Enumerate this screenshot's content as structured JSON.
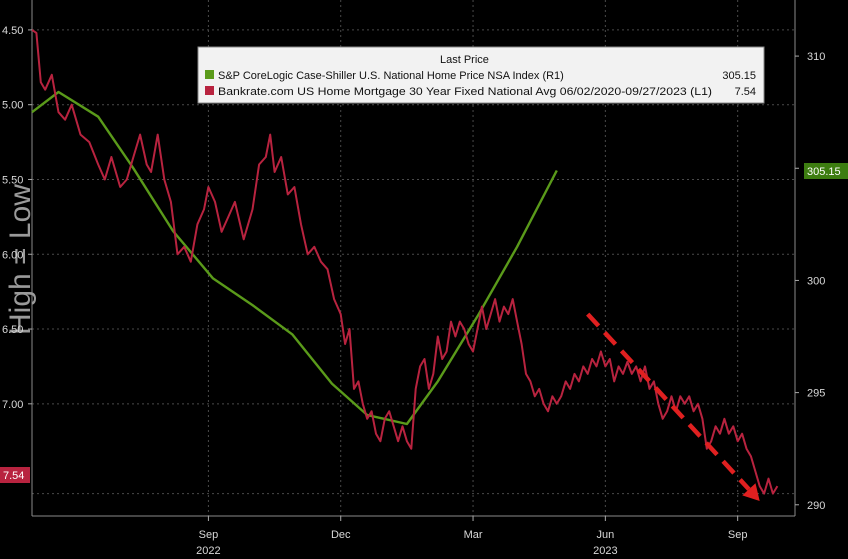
{
  "chart_data": {
    "type": "line",
    "title": "",
    "legend": {
      "header": "Last Price",
      "placement": "top",
      "entries": [
        {
          "label": "S&P CoreLogic Case-Shiller U.S. National Home Price NSA Index  (R1)",
          "value": "305.15",
          "color": "#5a9a1a"
        },
        {
          "label": "Bankrate.com US Home Mortgage 30 Year Fixed National Avg 06/02/2020-09/27/2023  (L1)",
          "value": "7.54",
          "color": "#b8233f"
        }
      ]
    },
    "x_ticks": [
      {
        "label": "Sep",
        "sub": "2022",
        "t": 4.0
      },
      {
        "label": "Dec",
        "sub": "",
        "t": 7.0
      },
      {
        "label": "Mar",
        "sub": "",
        "t": 10.0
      },
      {
        "label": "Jun",
        "sub": "2023",
        "t": 13.0
      },
      {
        "label": "Sep",
        "sub": "",
        "t": 16.0
      }
    ],
    "left_axis": {
      "ylim": [
        7.75,
        4.3
      ],
      "inverted": true,
      "ticks": [
        "4.50",
        "5.00",
        "5.50",
        "6.00",
        "6.50",
        "7.00"
      ],
      "tick_values": [
        4.5,
        5.0,
        5.5,
        6.0,
        6.5,
        7.0
      ]
    },
    "right_axis": {
      "ylim": [
        289.5,
        312.5
      ],
      "ticks": [
        "310",
        "305",
        "300",
        "295",
        "290"
      ],
      "tick_values": [
        310,
        305,
        300,
        295,
        290
      ]
    },
    "grid": true,
    "badges": {
      "left": "7.54",
      "right": "305.15"
    },
    "watermark": "High = Low",
    "series": [
      {
        "name": "S&P CoreLogic Case-Shiller U.S. National Home Price NSA Index",
        "axis": "right",
        "color": "#5a9a1a",
        "points": [
          [
            0.0,
            307.5
          ],
          [
            0.6,
            308.4
          ],
          [
            1.5,
            307.3
          ],
          [
            2.3,
            305.0
          ],
          [
            3.2,
            302.2
          ],
          [
            4.1,
            300.1
          ],
          [
            5.0,
            298.9
          ],
          [
            5.9,
            297.6
          ],
          [
            6.8,
            295.4
          ],
          [
            7.6,
            294.0
          ],
          [
            8.5,
            293.6
          ],
          [
            9.2,
            295.5
          ],
          [
            10.1,
            298.4
          ],
          [
            11.0,
            301.5
          ],
          [
            11.9,
            304.9
          ]
        ]
      },
      {
        "name": "Bankrate.com US Home Mortgage 30 Year Fixed National Avg",
        "axis": "left",
        "color": "#b8233f",
        "points": [
          [
            0.0,
            4.5
          ],
          [
            0.1,
            4.52
          ],
          [
            0.2,
            4.85
          ],
          [
            0.3,
            4.9
          ],
          [
            0.45,
            4.8
          ],
          [
            0.6,
            5.05
          ],
          [
            0.75,
            5.1
          ],
          [
            0.9,
            5.0
          ],
          [
            1.1,
            5.2
          ],
          [
            1.3,
            5.25
          ],
          [
            1.5,
            5.4
          ],
          [
            1.65,
            5.5
          ],
          [
            1.8,
            5.35
          ],
          [
            2.0,
            5.55
          ],
          [
            2.15,
            5.5
          ],
          [
            2.3,
            5.35
          ],
          [
            2.45,
            5.2
          ],
          [
            2.6,
            5.4
          ],
          [
            2.7,
            5.45
          ],
          [
            2.85,
            5.2
          ],
          [
            3.0,
            5.5
          ],
          [
            3.15,
            5.65
          ],
          [
            3.3,
            6.0
          ],
          [
            3.45,
            5.95
          ],
          [
            3.6,
            6.05
          ],
          [
            3.75,
            5.8
          ],
          [
            3.9,
            5.7
          ],
          [
            4.0,
            5.55
          ],
          [
            4.15,
            5.65
          ],
          [
            4.3,
            5.85
          ],
          [
            4.45,
            5.75
          ],
          [
            4.6,
            5.65
          ],
          [
            4.8,
            5.9
          ],
          [
            5.0,
            5.7
          ],
          [
            5.15,
            5.4
          ],
          [
            5.3,
            5.35
          ],
          [
            5.4,
            5.2
          ],
          [
            5.5,
            5.45
          ],
          [
            5.65,
            5.35
          ],
          [
            5.8,
            5.6
          ],
          [
            5.95,
            5.55
          ],
          [
            6.1,
            5.8
          ],
          [
            6.25,
            6.0
          ],
          [
            6.4,
            5.95
          ],
          [
            6.55,
            6.05
          ],
          [
            6.7,
            6.1
          ],
          [
            6.85,
            6.3
          ],
          [
            7.0,
            6.4
          ],
          [
            7.1,
            6.6
          ],
          [
            7.2,
            6.5
          ],
          [
            7.3,
            6.9
          ],
          [
            7.4,
            6.85
          ],
          [
            7.5,
            7.0
          ],
          [
            7.6,
            7.1
          ],
          [
            7.7,
            7.05
          ],
          [
            7.8,
            7.2
          ],
          [
            7.9,
            7.25
          ],
          [
            8.0,
            7.1
          ],
          [
            8.1,
            7.05
          ],
          [
            8.2,
            7.15
          ],
          [
            8.3,
            7.25
          ],
          [
            8.4,
            7.15
          ],
          [
            8.5,
            7.25
          ],
          [
            8.6,
            7.3
          ],
          [
            8.7,
            6.9
          ],
          [
            8.8,
            6.75
          ],
          [
            8.9,
            6.7
          ],
          [
            9.0,
            6.9
          ],
          [
            9.1,
            6.8
          ],
          [
            9.2,
            6.55
          ],
          [
            9.3,
            6.7
          ],
          [
            9.4,
            6.65
          ],
          [
            9.5,
            6.45
          ],
          [
            9.6,
            6.55
          ],
          [
            9.7,
            6.45
          ],
          [
            9.8,
            6.5
          ],
          [
            9.9,
            6.6
          ],
          [
            10.0,
            6.65
          ],
          [
            10.1,
            6.5
          ],
          [
            10.2,
            6.35
          ],
          [
            10.3,
            6.5
          ],
          [
            10.4,
            6.4
          ],
          [
            10.5,
            6.3
          ],
          [
            10.6,
            6.45
          ],
          [
            10.7,
            6.35
          ],
          [
            10.8,
            6.4
          ],
          [
            10.9,
            6.3
          ],
          [
            11.0,
            6.45
          ],
          [
            11.1,
            6.6
          ],
          [
            11.2,
            6.8
          ],
          [
            11.3,
            6.85
          ],
          [
            11.4,
            6.95
          ],
          [
            11.5,
            6.9
          ],
          [
            11.6,
            7.0
          ],
          [
            11.7,
            7.05
          ],
          [
            11.8,
            6.95
          ],
          [
            11.9,
            7.0
          ],
          [
            12.0,
            6.95
          ],
          [
            12.1,
            6.85
          ],
          [
            12.2,
            6.9
          ],
          [
            12.3,
            6.8
          ],
          [
            12.4,
            6.85
          ],
          [
            12.5,
            6.75
          ],
          [
            12.6,
            6.8
          ],
          [
            12.7,
            6.7
          ],
          [
            12.8,
            6.75
          ],
          [
            12.9,
            6.65
          ],
          [
            13.0,
            6.75
          ],
          [
            13.1,
            6.7
          ],
          [
            13.2,
            6.85
          ],
          [
            13.3,
            6.75
          ],
          [
            13.4,
            6.8
          ],
          [
            13.5,
            6.72
          ],
          [
            13.6,
            6.8
          ],
          [
            13.7,
            6.75
          ],
          [
            13.8,
            6.85
          ],
          [
            13.9,
            6.75
          ],
          [
            14.0,
            6.9
          ],
          [
            14.1,
            6.85
          ],
          [
            14.2,
            7.0
          ],
          [
            14.3,
            7.1
          ],
          [
            14.4,
            7.05
          ],
          [
            14.5,
            6.95
          ],
          [
            14.6,
            7.05
          ],
          [
            14.7,
            6.95
          ],
          [
            14.8,
            7.0
          ],
          [
            14.9,
            6.95
          ],
          [
            15.0,
            7.05
          ],
          [
            15.1,
            7.0
          ],
          [
            15.2,
            7.1
          ],
          [
            15.3,
            7.3
          ],
          [
            15.4,
            7.25
          ],
          [
            15.5,
            7.15
          ],
          [
            15.6,
            7.2
          ],
          [
            15.7,
            7.1
          ],
          [
            15.8,
            7.2
          ],
          [
            15.9,
            7.15
          ],
          [
            16.0,
            7.25
          ],
          [
            16.1,
            7.2
          ],
          [
            16.2,
            7.3
          ],
          [
            16.3,
            7.35
          ],
          [
            16.4,
            7.45
          ],
          [
            16.5,
            7.55
          ],
          [
            16.6,
            7.6
          ],
          [
            16.7,
            7.5
          ],
          [
            16.8,
            7.6
          ],
          [
            16.9,
            7.55
          ]
        ]
      }
    ],
    "annotations": [
      {
        "type": "dashed-arrow",
        "color": "#e02020",
        "from": {
          "t": 12.6,
          "y": 6.4
        },
        "to": {
          "t": 16.5,
          "y": 7.65
        }
      }
    ]
  }
}
